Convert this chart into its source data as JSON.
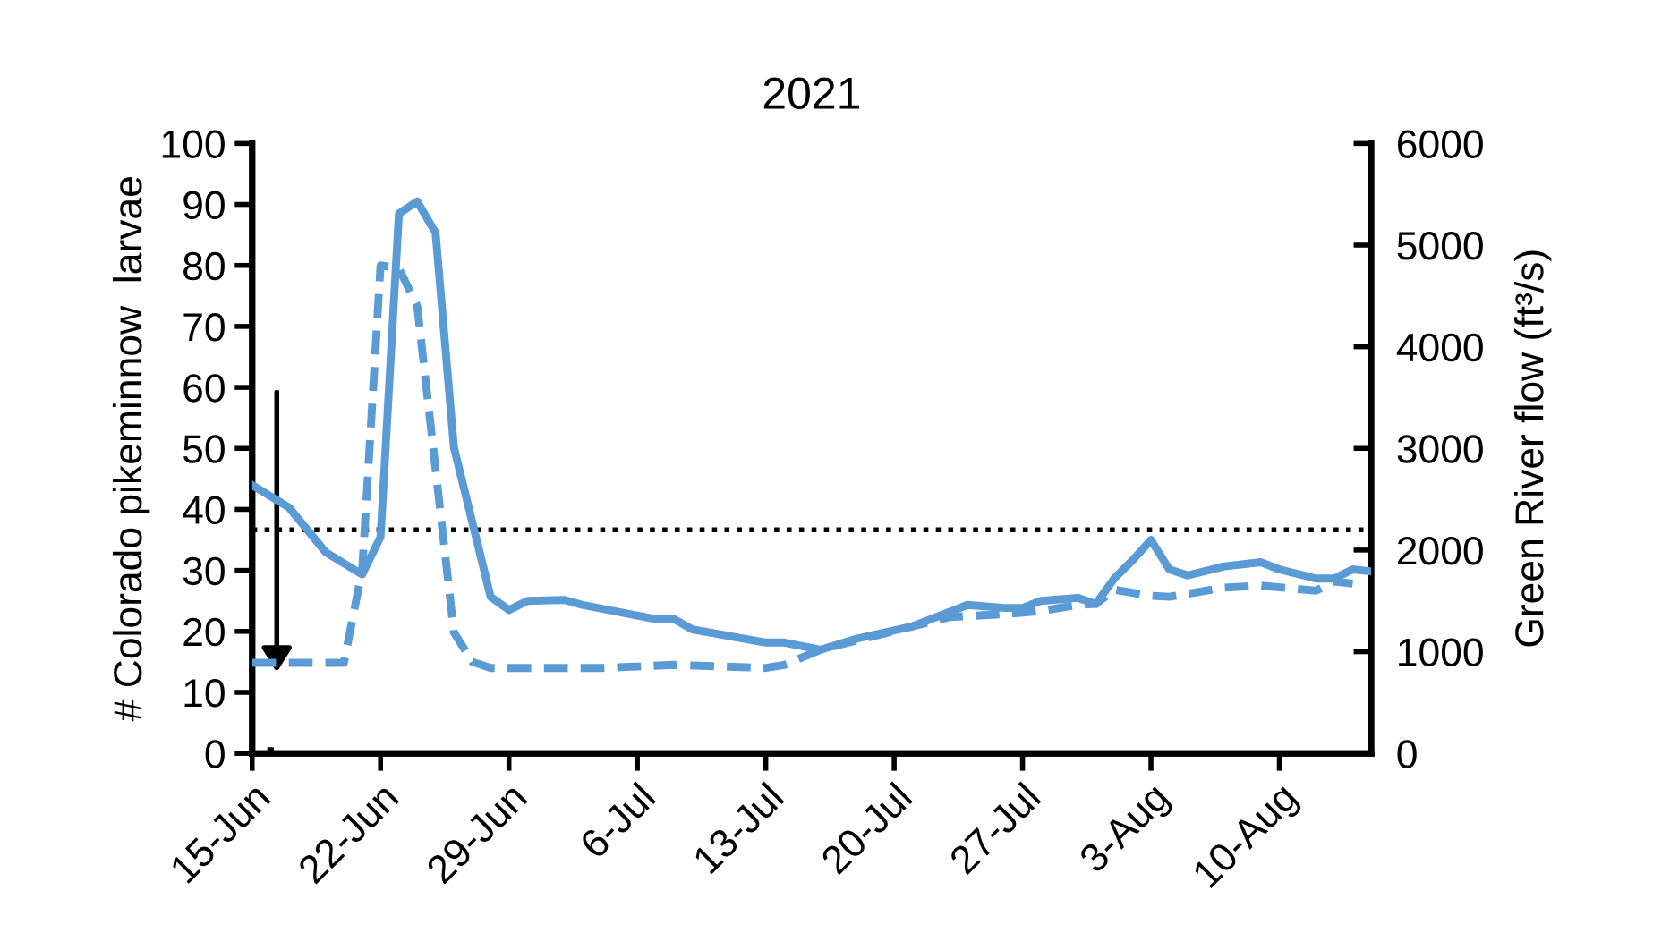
{
  "chart_data": {
    "type": "line",
    "title": "2021",
    "ylabel": "# Colorado pikeminnow  larvae",
    "y2label": "Green River flow (ft³/s)",
    "xlim": [
      "2021-06-15",
      "2021-08-15"
    ],
    "xticks": [
      {
        "value": "2021-06-15",
        "label": "15-Jun"
      },
      {
        "value": "2021-06-22",
        "label": "22-Jun"
      },
      {
        "value": "2021-06-29",
        "label": "29-Jun"
      },
      {
        "value": "2021-07-06",
        "label": "6-Jul"
      },
      {
        "value": "2021-07-13",
        "label": "13-Jul"
      },
      {
        "value": "2021-07-20",
        "label": "20-Jul"
      },
      {
        "value": "2021-07-27",
        "label": "27-Jul"
      },
      {
        "value": "2021-08-03",
        "label": "3-Aug"
      },
      {
        "value": "2021-08-10",
        "label": "10-Aug"
      }
    ],
    "ylim": [
      0,
      100
    ],
    "yticks": [
      0,
      10,
      20,
      30,
      40,
      50,
      60,
      70,
      80,
      90,
      100
    ],
    "y2lim": [
      0,
      6000
    ],
    "y2ticks": [
      0,
      1000,
      2000,
      3000,
      4000,
      5000,
      6000
    ],
    "grid": false,
    "legend": false,
    "series": [
      {
        "type": "bar",
        "color": "#000000",
        "x": [
          "2021-06-16"
        ],
        "values": [
          1
        ]
      },
      {
        "axis": "y2",
        "color": "#5b9bd5",
        "line_style": "solid",
        "x": [
          "2021-06-15",
          "2021-06-16",
          "2021-06-17",
          "2021-06-19",
          "2021-06-21",
          "2021-06-22",
          "2021-06-23",
          "2021-06-24",
          "2021-06-25",
          "2021-06-26",
          "2021-06-28",
          "2021-06-29",
          "2021-06-30",
          "2021-07-02",
          "2021-07-03",
          "2021-07-07",
          "2021-07-08",
          "2021-07-09",
          "2021-07-13",
          "2021-07-14",
          "2021-07-16",
          "2021-07-18",
          "2021-07-21",
          "2021-07-24",
          "2021-07-26",
          "2021-07-27",
          "2021-07-28",
          "2021-07-30",
          "2021-07-31",
          "2021-08-01",
          "2021-08-02",
          "2021-08-03",
          "2021-08-04",
          "2021-08-05",
          "2021-08-07",
          "2021-08-09",
          "2021-08-10",
          "2021-08-12",
          "2021-08-13",
          "2021-08-14",
          "2021-08-15"
        ],
        "values": [
          2640,
          2530,
          2420,
          1980,
          1760,
          2130,
          5310,
          5430,
          5120,
          3010,
          1540,
          1410,
          1500,
          1510,
          1460,
          1320,
          1320,
          1220,
          1090,
          1090,
          1020,
          1130,
          1250,
          1460,
          1430,
          1430,
          1500,
          1530,
          1470,
          1720,
          1900,
          2100,
          1810,
          1750,
          1840,
          1880,
          1810,
          1720,
          1720,
          1810,
          1790
        ]
      },
      {
        "axis": "y2",
        "color": "#5b9bd5",
        "line_style": "dashed",
        "x": [
          "2021-06-15",
          "2021-06-20",
          "2021-06-21",
          "2021-06-22",
          "2021-06-23",
          "2021-06-24",
          "2021-06-26",
          "2021-06-27",
          "2021-06-28",
          "2021-07-04",
          "2021-07-08",
          "2021-07-13",
          "2021-07-14",
          "2021-07-16",
          "2021-07-21",
          "2021-07-23",
          "2021-07-26",
          "2021-07-28",
          "2021-07-30",
          "2021-07-31",
          "2021-08-01",
          "2021-08-03",
          "2021-08-04",
          "2021-08-07",
          "2021-08-09",
          "2021-08-12",
          "2021-08-13",
          "2021-08-14"
        ],
        "values": [
          890,
          890,
          1810,
          4800,
          4770,
          4400,
          1190,
          900,
          840,
          840,
          870,
          840,
          870,
          1020,
          1250,
          1340,
          1370,
          1400,
          1460,
          1470,
          1610,
          1550,
          1540,
          1630,
          1650,
          1600,
          1690,
          1670
        ]
      }
    ],
    "ref_lines": [
      {
        "axis": "y2",
        "value": 2200,
        "color": "#000000",
        "line_style": "dotted"
      }
    ]
  }
}
